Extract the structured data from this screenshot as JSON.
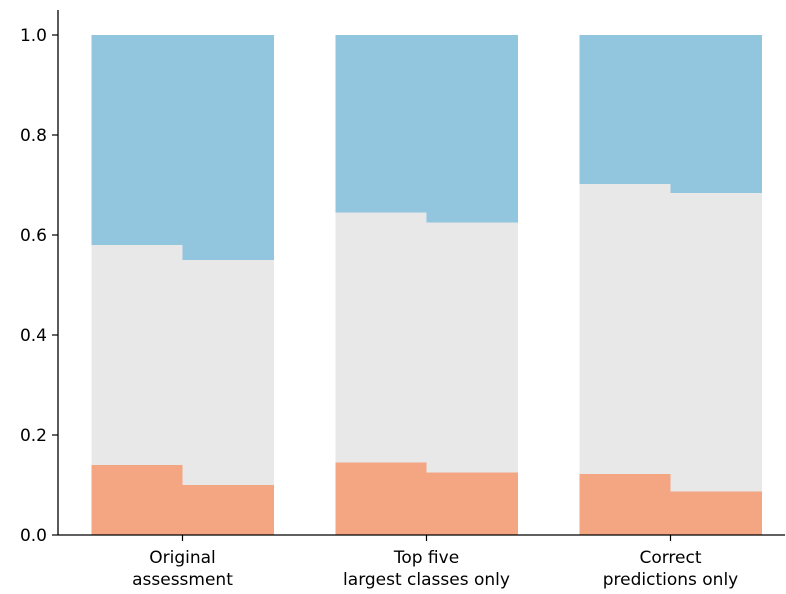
{
  "chart_data": {
    "type": "bar",
    "stacked": true,
    "normalized": true,
    "categories": [
      "Original\nassessment",
      "Top five\nlargest classes only",
      "Correct\npredictions only"
    ],
    "bars_per_category": 2,
    "series": [
      {
        "color": "#f4a582",
        "values": [
          [
            0.14,
            0.1
          ],
          [
            0.145,
            0.125
          ],
          [
            0.122,
            0.087
          ]
        ]
      },
      {
        "color": "#e8e8e8",
        "values": [
          [
            0.44,
            0.45
          ],
          [
            0.5,
            0.5
          ],
          [
            0.58,
            0.597
          ]
        ]
      },
      {
        "color": "#92c5de",
        "values": [
          [
            0.42,
            0.45
          ],
          [
            0.355,
            0.375
          ],
          [
            0.298,
            0.316
          ]
        ]
      }
    ],
    "yticks": [
      "0.0",
      "0.2",
      "0.4",
      "0.6",
      "0.8",
      "1.0"
    ],
    "ylim": [
      0,
      1.05
    ],
    "grid": false,
    "legend": "none"
  }
}
